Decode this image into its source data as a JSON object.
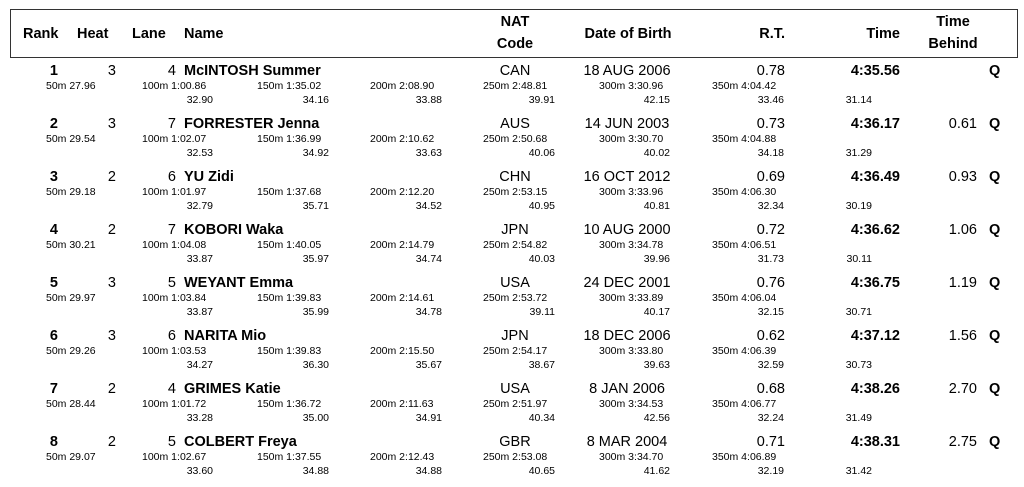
{
  "headers": {
    "rank": "Rank",
    "heat": "Heat",
    "lane": "Lane",
    "name": "Name",
    "nat_line1": "NAT",
    "nat_line2": "Code",
    "dob": "Date of Birth",
    "rt": "R.T.",
    "time": "Time",
    "behind_line1": "Time",
    "behind_line2": "Behind"
  },
  "rows": [
    {
      "rank": "1",
      "heat": "3",
      "lane": "4",
      "name": "McINTOSH Summer",
      "nat": "CAN",
      "dob": "18 AUG 2006",
      "rt": "0.78",
      "time": "4:35.56",
      "behind": "",
      "q": "Q",
      "s50": "50m  27.96",
      "s100": "100m  1:00.86",
      "s150": "150m  1:35.02",
      "s200": "200m  2:08.90",
      "s250": "250m  2:48.81",
      "s300": "300m  3:30.96",
      "s350": "350m  4:04.42",
      "d100": "32.90",
      "d150": "34.16",
      "d200": "33.88",
      "d250": "39.91",
      "d300": "42.15",
      "d350": "33.46",
      "d400": "31.14"
    },
    {
      "rank": "2",
      "heat": "3",
      "lane": "7",
      "name": "FORRESTER Jenna",
      "nat": "AUS",
      "dob": "14 JUN 2003",
      "rt": "0.73",
      "time": "4:36.17",
      "behind": "0.61",
      "q": "Q",
      "s50": "50m  29.54",
      "s100": "100m  1:02.07",
      "s150": "150m  1:36.99",
      "s200": "200m  2:10.62",
      "s250": "250m  2:50.68",
      "s300": "300m  3:30.70",
      "s350": "350m  4:04.88",
      "d100": "32.53",
      "d150": "34.92",
      "d200": "33.63",
      "d250": "40.06",
      "d300": "40.02",
      "d350": "34.18",
      "d400": "31.29"
    },
    {
      "rank": "3",
      "heat": "2",
      "lane": "6",
      "name": "YU Zidi",
      "nat": "CHN",
      "dob": "16 OCT 2012",
      "rt": "0.69",
      "time": "4:36.49",
      "behind": "0.93",
      "q": "Q",
      "s50": "50m  29.18",
      "s100": "100m  1:01.97",
      "s150": "150m  1:37.68",
      "s200": "200m  2:12.20",
      "s250": "250m  2:53.15",
      "s300": "300m  3:33.96",
      "s350": "350m  4:06.30",
      "d100": "32.79",
      "d150": "35.71",
      "d200": "34.52",
      "d250": "40.95",
      "d300": "40.81",
      "d350": "32.34",
      "d400": "30.19"
    },
    {
      "rank": "4",
      "heat": "2",
      "lane": "7",
      "name": "KOBORI Waka",
      "nat": "JPN",
      "dob": "10 AUG 2000",
      "rt": "0.72",
      "time": "4:36.62",
      "behind": "1.06",
      "q": "Q",
      "s50": "50m  30.21",
      "s100": "100m  1:04.08",
      "s150": "150m  1:40.05",
      "s200": "200m  2:14.79",
      "s250": "250m  2:54.82",
      "s300": "300m  3:34.78",
      "s350": "350m  4:06.51",
      "d100": "33.87",
      "d150": "35.97",
      "d200": "34.74",
      "d250": "40.03",
      "d300": "39.96",
      "d350": "31.73",
      "d400": "30.11"
    },
    {
      "rank": "5",
      "heat": "3",
      "lane": "5",
      "name": "WEYANT Emma",
      "nat": "USA",
      "dob": "24 DEC 2001",
      "rt": "0.76",
      "time": "4:36.75",
      "behind": "1.19",
      "q": "Q",
      "s50": "50m  29.97",
      "s100": "100m  1:03.84",
      "s150": "150m  1:39.83",
      "s200": "200m  2:14.61",
      "s250": "250m  2:53.72",
      "s300": "300m  3:33.89",
      "s350": "350m  4:06.04",
      "d100": "33.87",
      "d150": "35.99",
      "d200": "34.78",
      "d250": "39.11",
      "d300": "40.17",
      "d350": "32.15",
      "d400": "30.71"
    },
    {
      "rank": "6",
      "heat": "3",
      "lane": "6",
      "name": "NARITA Mio",
      "nat": "JPN",
      "dob": "18 DEC 2006",
      "rt": "0.62",
      "time": "4:37.12",
      "behind": "1.56",
      "q": "Q",
      "s50": "50m  29.26",
      "s100": "100m  1:03.53",
      "s150": "150m  1:39.83",
      "s200": "200m  2:15.50",
      "s250": "250m  2:54.17",
      "s300": "300m  3:33.80",
      "s350": "350m  4:06.39",
      "d100": "34.27",
      "d150": "36.30",
      "d200": "35.67",
      "d250": "38.67",
      "d300": "39.63",
      "d350": "32.59",
      "d400": "30.73"
    },
    {
      "rank": "7",
      "heat": "2",
      "lane": "4",
      "name": "GRIMES Katie",
      "nat": "USA",
      "dob": "8 JAN 2006",
      "rt": "0.68",
      "time": "4:38.26",
      "behind": "2.70",
      "q": "Q",
      "s50": "50m  28.44",
      "s100": "100m  1:01.72",
      "s150": "150m  1:36.72",
      "s200": "200m  2:11.63",
      "s250": "250m  2:51.97",
      "s300": "300m  3:34.53",
      "s350": "350m  4:06.77",
      "d100": "33.28",
      "d150": "35.00",
      "d200": "34.91",
      "d250": "40.34",
      "d300": "42.56",
      "d350": "32.24",
      "d400": "31.49"
    },
    {
      "rank": "8",
      "heat": "2",
      "lane": "5",
      "name": "COLBERT Freya",
      "nat": "GBR",
      "dob": "8 MAR 2004",
      "rt": "0.71",
      "time": "4:38.31",
      "behind": "2.75",
      "q": "Q",
      "s50": "50m  29.07",
      "s100": "100m  1:02.67",
      "s150": "150m  1:37.55",
      "s200": "200m  2:12.43",
      "s250": "250m  2:53.08",
      "s300": "300m  3:34.70",
      "s350": "350m  4:06.89",
      "d100": "33.60",
      "d150": "34.88",
      "d200": "34.88",
      "d250": "40.65",
      "d300": "41.62",
      "d350": "32.19",
      "d400": "31.42"
    }
  ]
}
